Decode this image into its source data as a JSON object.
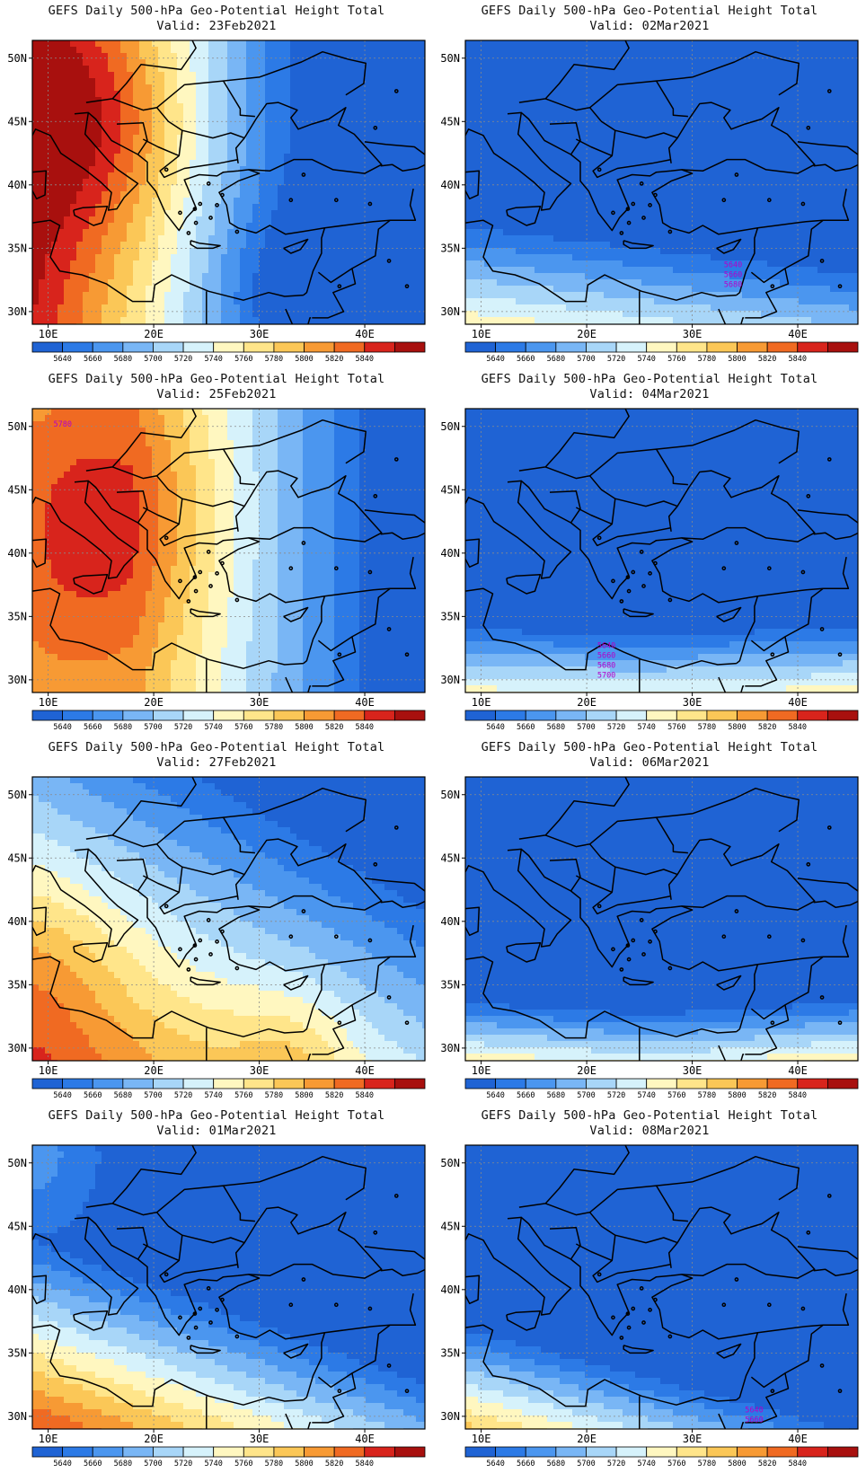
{
  "title": "GEFS Daily 500-hPa Geo-Potential Height Total",
  "valid_prefix": "Valid:",
  "map": {
    "lat_labels": [
      "50N",
      "45N",
      "40N",
      "35N",
      "30N"
    ],
    "lon_labels": [
      "10E",
      "20E",
      "30E",
      "40E"
    ]
  },
  "colorbar": {
    "labels": [
      "5640",
      "5660",
      "5680",
      "5700",
      "5720",
      "5740",
      "5760",
      "5780",
      "5800",
      "5820",
      "5840"
    ],
    "colors": [
      "#1f63d4",
      "#2c7ae6",
      "#4b96ef",
      "#79b6f5",
      "#a8d6f8",
      "#d6f2fb",
      "#fff7c0",
      "#ffe58a",
      "#fbc757",
      "#f79a34",
      "#f06a22",
      "#d8241c",
      "#a8100e"
    ]
  },
  "panels": [
    {
      "valid": "23Feb2021",
      "contour_labels": []
    },
    {
      "valid": "02Mar2021",
      "contour_labels": [
        "5640",
        "5660",
        "5680"
      ]
    },
    {
      "valid": "25Feb2021",
      "contour_labels": [
        "5780"
      ]
    },
    {
      "valid": "04Mar2021",
      "contour_labels": [
        "5640",
        "5660",
        "5680",
        "5700"
      ]
    },
    {
      "valid": "27Feb2021",
      "contour_labels": []
    },
    {
      "valid": "06Mar2021",
      "contour_labels": []
    },
    {
      "valid": "01Mar2021",
      "contour_labels": []
    },
    {
      "valid": "08Mar2021",
      "contour_labels": [
        "5640",
        "5660"
      ]
    }
  ]
}
